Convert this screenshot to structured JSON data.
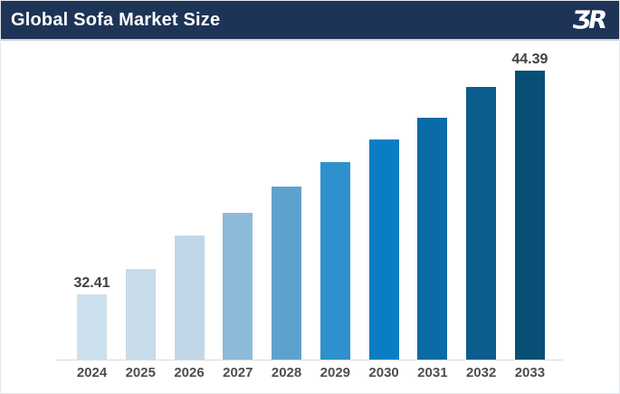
{
  "header": {
    "title": "Global Sofa Market Size",
    "logo_text": "ƷR"
  },
  "theme": {
    "page_bg": "#ffffff",
    "page_border": "#e4e7ea",
    "header_bg": "#1d3456",
    "header_border": "#ccd3d9",
    "title_color": "#ffffff",
    "axis_line_color": "#d9d9d9",
    "data_label_color": "#414141",
    "category_label_color": "#4d4d4d"
  },
  "chart_data": {
    "type": "bar",
    "title": "Global Sofa Market Size",
    "xlabel": "",
    "ylabel": "",
    "grid": false,
    "legend": "none",
    "value_axis_visible": false,
    "ylim": [
      28.9,
      45.4
    ],
    "categories": [
      "2024",
      "2025",
      "2026",
      "2027",
      "2028",
      "2029",
      "2030",
      "2031",
      "2032",
      "2033"
    ],
    "values": [
      32.41,
      33.75,
      35.55,
      36.75,
      38.15,
      39.5,
      40.7,
      41.85,
      43.5,
      44.39
    ],
    "data_labels": {
      "2024": "32.41",
      "2033": "44.39"
    },
    "bar_colors": [
      "#cde0ed",
      "#c8dcea",
      "#c1d7e8",
      "#8dbad8",
      "#5da2cf",
      "#2e91cd",
      "#0a7ec4",
      "#0a6ba6",
      "#0a5d8d",
      "#074f74"
    ]
  }
}
